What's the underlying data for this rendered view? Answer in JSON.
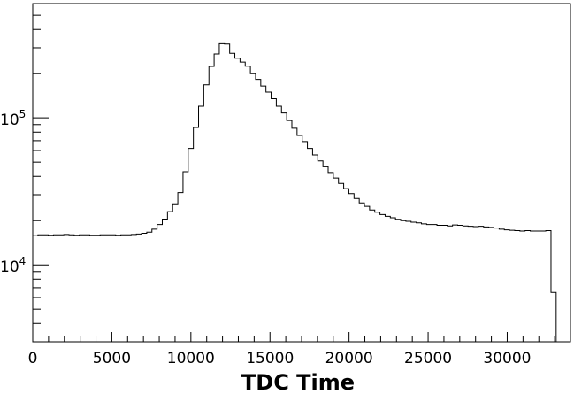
{
  "chart_data": {
    "type": "histogram",
    "title": "",
    "xlabel": "TDC Time",
    "ylabel": "",
    "xlim": [
      0,
      34000
    ],
    "ylim": [
      3000,
      600000
    ],
    "yscale": "log",
    "grid": false,
    "legend": "none",
    "line_color": "#000000",
    "x_tick_labels": [
      "0",
      "5000",
      "10000",
      "15000",
      "20000",
      "25000",
      "30000"
    ],
    "x_ticks": [
      0,
      5000,
      10000,
      15000,
      20000,
      25000,
      30000
    ],
    "y_tick_labels": [
      {
        "base": "10",
        "exp": "4",
        "value": 10000
      },
      {
        "base": "10",
        "exp": "5",
        "value": 100000
      }
    ],
    "bins": {
      "x0": 0,
      "width": 327.68,
      "values": [
        15800,
        16000,
        16000,
        15900,
        16000,
        16000,
        16100,
        16000,
        15900,
        16000,
        16000,
        15900,
        15900,
        16000,
        16000,
        16000,
        15900,
        16000,
        16000,
        16100,
        16200,
        16400,
        16700,
        17500,
        18800,
        20500,
        23000,
        26000,
        31000,
        43000,
        62000,
        86000,
        120000,
        168000,
        224000,
        272000,
        320000,
        318000,
        275000,
        255000,
        240000,
        225000,
        200000,
        183000,
        165000,
        150000,
        135000,
        120000,
        108000,
        96000,
        85000,
        76000,
        69000,
        62000,
        56000,
        51000,
        46500,
        42500,
        39000,
        35800,
        33000,
        30500,
        28300,
        26400,
        25000,
        23600,
        22800,
        22000,
        21400,
        20900,
        20400,
        20000,
        19800,
        19500,
        19300,
        19000,
        18800,
        18800,
        18600,
        18600,
        18400,
        18700,
        18600,
        18400,
        18300,
        18200,
        18300,
        18100,
        18000,
        17800,
        17500,
        17300,
        17200,
        17100,
        17000,
        17100,
        17000,
        17000,
        17000,
        17100,
        6500,
        2000
      ]
    }
  }
}
